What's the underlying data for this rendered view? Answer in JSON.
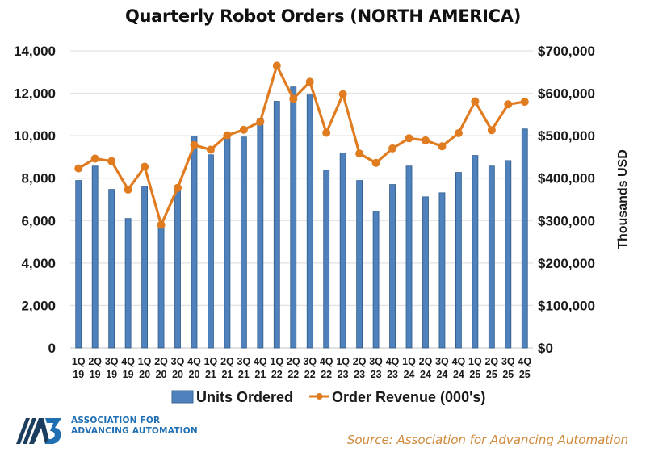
{
  "chart_data": {
    "type": "bar",
    "title": "Quarterly Robot Orders (NORTH AMERICA)",
    "xlabel": "",
    "ylabel": "",
    "y2label": "Thousands USD",
    "categories": [
      "1Q 19",
      "2Q 19",
      "3Q 19",
      "4Q 19",
      "1Q 20",
      "2Q 20",
      "3Q 20",
      "4Q 20",
      "1Q 21",
      "2Q 21",
      "3Q 21",
      "4Q 21",
      "1Q 22",
      "2Q 22",
      "3Q 22",
      "4Q 22",
      "1Q 23",
      "2Q 23",
      "3Q 23",
      "4Q 23",
      "1Q 24",
      "2Q 24",
      "3Q 24",
      "4Q 24",
      "1Q 25",
      "2Q 25",
      "3Q 25",
      "4Q 25"
    ],
    "series": [
      {
        "name": "Units Ordered",
        "type": "bar",
        "axis": "left",
        "color": "#4f81bd",
        "values": [
          7890,
          8570,
          7470,
          6100,
          7620,
          5750,
          7400,
          9980,
          9100,
          9870,
          9940,
          10820,
          11620,
          12300,
          11920,
          8380,
          9180,
          7890,
          6440,
          7700,
          8570,
          7120,
          7310,
          8270,
          9070,
          8570,
          8830,
          10320
        ]
      },
      {
        "name": "Order Revenue (000's)",
        "type": "line",
        "axis": "right",
        "color": "#e07b20",
        "values": [
          423000,
          446000,
          440000,
          373000,
          427000,
          290000,
          377000,
          478000,
          467000,
          501000,
          514000,
          533000,
          665000,
          587000,
          627000,
          507000,
          598000,
          458000,
          436000,
          470000,
          494000,
          489000,
          475000,
          506000,
          581000,
          513000,
          574000,
          580000
        ]
      }
    ],
    "ylim": [
      0,
      14000
    ],
    "y2lim": [
      0,
      700000
    ],
    "yticks": [
      "0",
      "2,000",
      "4,000",
      "6,000",
      "8,000",
      "10,000",
      "12,000",
      "14,000"
    ],
    "y2ticks": [
      "$0",
      "$100,000",
      "$200,000",
      "$300,000",
      "$400,000",
      "$500,000",
      "$600,000",
      "$700,000"
    ],
    "grid": true,
    "legend": {
      "position": "bottom",
      "entries": [
        "Units Ordered",
        "Order Revenue (000's)"
      ]
    }
  },
  "footer": {
    "source": "Source: Association for Advancing Automation",
    "logo_mark": "A3",
    "logo_line1": "ASSOCIATION FOR",
    "logo_line2": "ADVANCING AUTOMATION"
  }
}
